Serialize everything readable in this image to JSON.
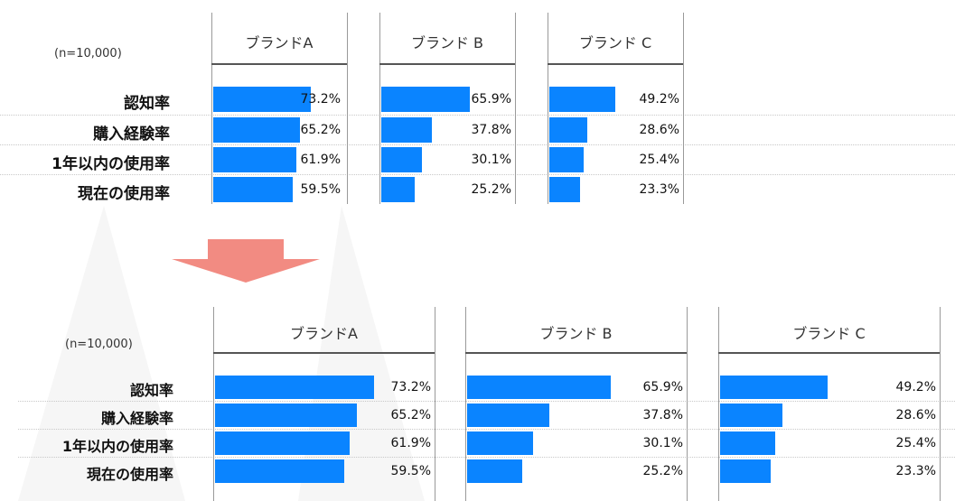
{
  "colors": {
    "bar": "#0a84ff",
    "arrow": "#f28b82"
  },
  "chart_data": [
    {
      "type": "bar",
      "note": "(n=10,000)",
      "categories": [
        "認知率",
        "購入経験率",
        "1年以内の使用率",
        "現在の使用率"
      ],
      "series": [
        {
          "name": "ブランドA",
          "values": [
            73.2,
            65.2,
            61.9,
            59.5
          ]
        },
        {
          "name": "ブランド B",
          "values": [
            65.9,
            37.8,
            30.1,
            25.2
          ]
        },
        {
          "name": "ブランド C",
          "values": [
            49.2,
            28.6,
            25.4,
            23.3
          ]
        }
      ],
      "value_labels": [
        [
          "73.2%",
          "65.2%",
          "61.9%",
          "59.5%"
        ],
        [
          "65.9%",
          "37.8%",
          "30.1%",
          "25.2%"
        ],
        [
          "49.2%",
          "28.6%",
          "25.4%",
          "23.3%"
        ]
      ],
      "xlim": [
        0,
        100
      ],
      "grid": false
    },
    {
      "type": "bar",
      "note": "(n=10,000)",
      "categories": [
        "認知率",
        "購入経験率",
        "1年以内の使用率",
        "現在の使用率"
      ],
      "series": [
        {
          "name": "ブランドA",
          "values": [
            73.2,
            65.2,
            61.9,
            59.5
          ]
        },
        {
          "name": "ブランド B",
          "values": [
            65.9,
            37.8,
            30.1,
            25.2
          ]
        },
        {
          "name": "ブランド C",
          "values": [
            49.2,
            28.6,
            25.4,
            23.3
          ]
        }
      ],
      "value_labels": [
        [
          "73.2%",
          "65.2%",
          "61.9%",
          "59.5%"
        ],
        [
          "65.9%",
          "37.8%",
          "30.1%",
          "25.2%"
        ],
        [
          "49.2%",
          "28.6%",
          "25.4%",
          "23.3%"
        ]
      ],
      "xlim": [
        0,
        100
      ],
      "grid": false
    }
  ]
}
